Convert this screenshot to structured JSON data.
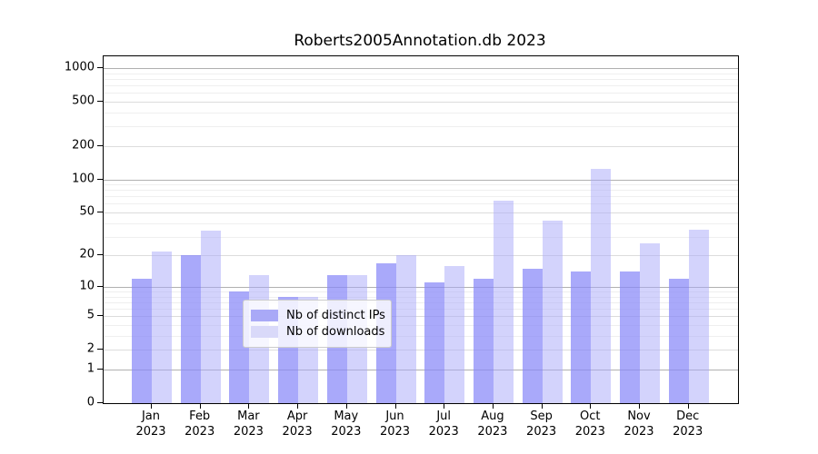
{
  "title": "Roberts2005Annotation.db 2023",
  "chart_data": {
    "type": "bar",
    "title": "Roberts2005Annotation.db 2023",
    "categories": [
      "Jan 2023",
      "Feb 2023",
      "Mar 2023",
      "Apr 2023",
      "May 2023",
      "Jun 2023",
      "Jul 2023",
      "Aug 2023",
      "Sep 2023",
      "Oct 2023",
      "Nov 2023",
      "Dec 2023"
    ],
    "series": [
      {
        "name": "Nb of distinct IPs",
        "color": "rgba(136,136,248,0.72)",
        "color_hex": "#a9a9f7",
        "values": [
          12,
          20,
          9,
          8,
          13,
          17,
          11,
          12,
          15,
          14,
          14,
          12
        ]
      },
      {
        "name": "Nb of downloads",
        "color": "rgba(168,168,250,0.50)",
        "color_hex": "#d9d9f9",
        "values": [
          22,
          34,
          13,
          8,
          13,
          20,
          16,
          64,
          42,
          125,
          26,
          35
        ]
      }
    ],
    "xlabel": "",
    "ylabel": "",
    "y_axis": {
      "scale": "log1p",
      "tick_values": [
        0,
        1,
        2,
        5,
        10,
        20,
        50,
        100,
        200,
        500,
        1000
      ],
      "tick_labels": [
        "0",
        "1",
        "2",
        "5",
        "10",
        "20",
        "50",
        "100",
        "200",
        "500",
        "1000"
      ],
      "range": [
        0,
        1273
      ]
    },
    "grid": true,
    "legend_position": "lower-center"
  },
  "legend": {
    "items": [
      {
        "label": "Nb of distinct IPs"
      },
      {
        "label": "Nb of downloads"
      }
    ]
  },
  "colors": {
    "background": "#ffffff",
    "spine": "#000000",
    "grid_major": "#b0b0b0",
    "grid_mid": "#dcdcdc",
    "grid_minor": "#efefef",
    "bar_ips": "#a9a9f7",
    "bar_downloads": "#d9d9f9"
  }
}
